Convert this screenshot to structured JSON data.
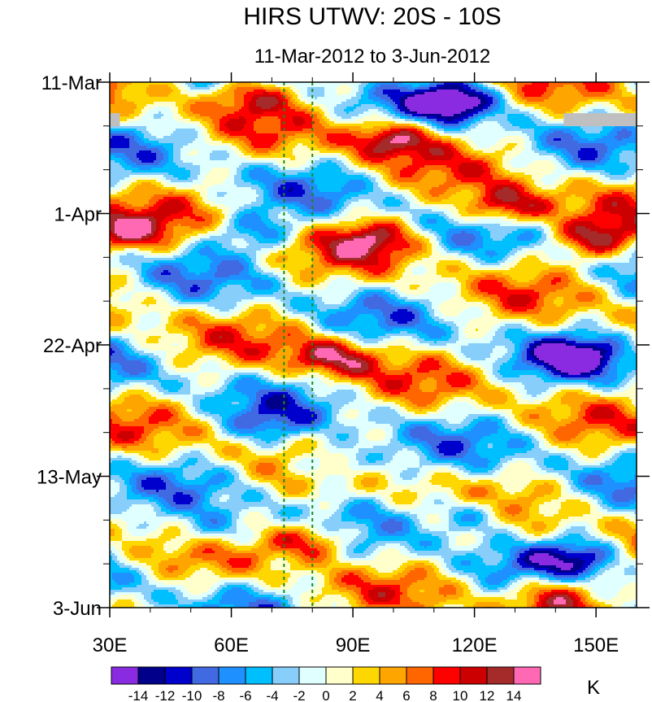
{
  "chart_data": {
    "type": "heatmap",
    "title": "HIRS UTWV: 20S - 10S",
    "subtitle": "11-Mar-2012 to 3-Jun-2012",
    "x_axis": {
      "range": [
        30,
        160
      ],
      "ticks": [
        {
          "value": 30,
          "label": "30E"
        },
        {
          "value": 60,
          "label": "60E"
        },
        {
          "value": 90,
          "label": "90E"
        },
        {
          "value": 120,
          "label": "120E"
        },
        {
          "value": 150,
          "label": "150E"
        }
      ]
    },
    "y_axis": {
      "range": [
        "2012-03-11",
        "2012-06-03"
      ],
      "direction": "time increases downward",
      "ticks": [
        {
          "value": "2012-03-11",
          "label": "11-Mar"
        },
        {
          "value": "2012-04-01",
          "label": "1-Apr"
        },
        {
          "value": "2012-04-22",
          "label": "22-Apr"
        },
        {
          "value": "2012-05-13",
          "label": "13-May"
        },
        {
          "value": "2012-06-03",
          "label": "3-Jun"
        }
      ]
    },
    "reference_lines_x": [
      73,
      80
    ],
    "reference_line_color": "#1a8a1a",
    "missing_data_color": "#bfbfbf",
    "colorbar": {
      "unit_label": "K",
      "level_labels": [
        "-14",
        "-12",
        "-10",
        "-8",
        "-6",
        "-4",
        "-2",
        "0",
        "2",
        "4",
        "6",
        "8",
        "10",
        "12",
        "14"
      ],
      "colors": [
        "#8a2be2",
        "#00008b",
        "#0000cd",
        "#4169e1",
        "#1e90ff",
        "#00bfff",
        "#87cefa",
        "#e0ffff",
        "#ffffcc",
        "#ffd700",
        "#ffa500",
        "#ff6600",
        "#ff0000",
        "#cc0000",
        "#a52a2a",
        "#ff69b4"
      ]
    },
    "anomaly_features": [
      {
        "lon": 65,
        "date": "2012-03-13",
        "value": 10
      },
      {
        "lon": 100,
        "date": "2012-03-20",
        "value": 14
      },
      {
        "lon": 128,
        "date": "2012-03-31",
        "value": 14
      },
      {
        "lon": 150,
        "date": "2012-04-05",
        "value": 12
      },
      {
        "lon": 33,
        "date": "2012-04-04",
        "value": 12
      },
      {
        "lon": 95,
        "date": "2012-04-05",
        "value": 10
      },
      {
        "lon": 85,
        "date": "2012-04-24",
        "value": 12
      },
      {
        "lon": 80,
        "date": "2012-05-23",
        "value": 12
      },
      {
        "lon": 140,
        "date": "2012-06-01",
        "value": 12
      },
      {
        "lon": 115,
        "date": "2012-03-14",
        "value": -14
      },
      {
        "lon": 145,
        "date": "2012-04-24",
        "value": -12
      },
      {
        "lon": 65,
        "date": "2012-04-04",
        "value": -8
      },
      {
        "lon": 85,
        "date": "2012-05-11",
        "value": -10
      },
      {
        "lon": 120,
        "date": "2012-05-19",
        "value": -10
      },
      {
        "lon": 145,
        "date": "2012-05-26",
        "value": -10
      },
      {
        "lon": 55,
        "date": "2012-05-22",
        "value": -8
      },
      {
        "lon": 70,
        "date": "2012-05-05",
        "value": -6
      }
    ]
  }
}
